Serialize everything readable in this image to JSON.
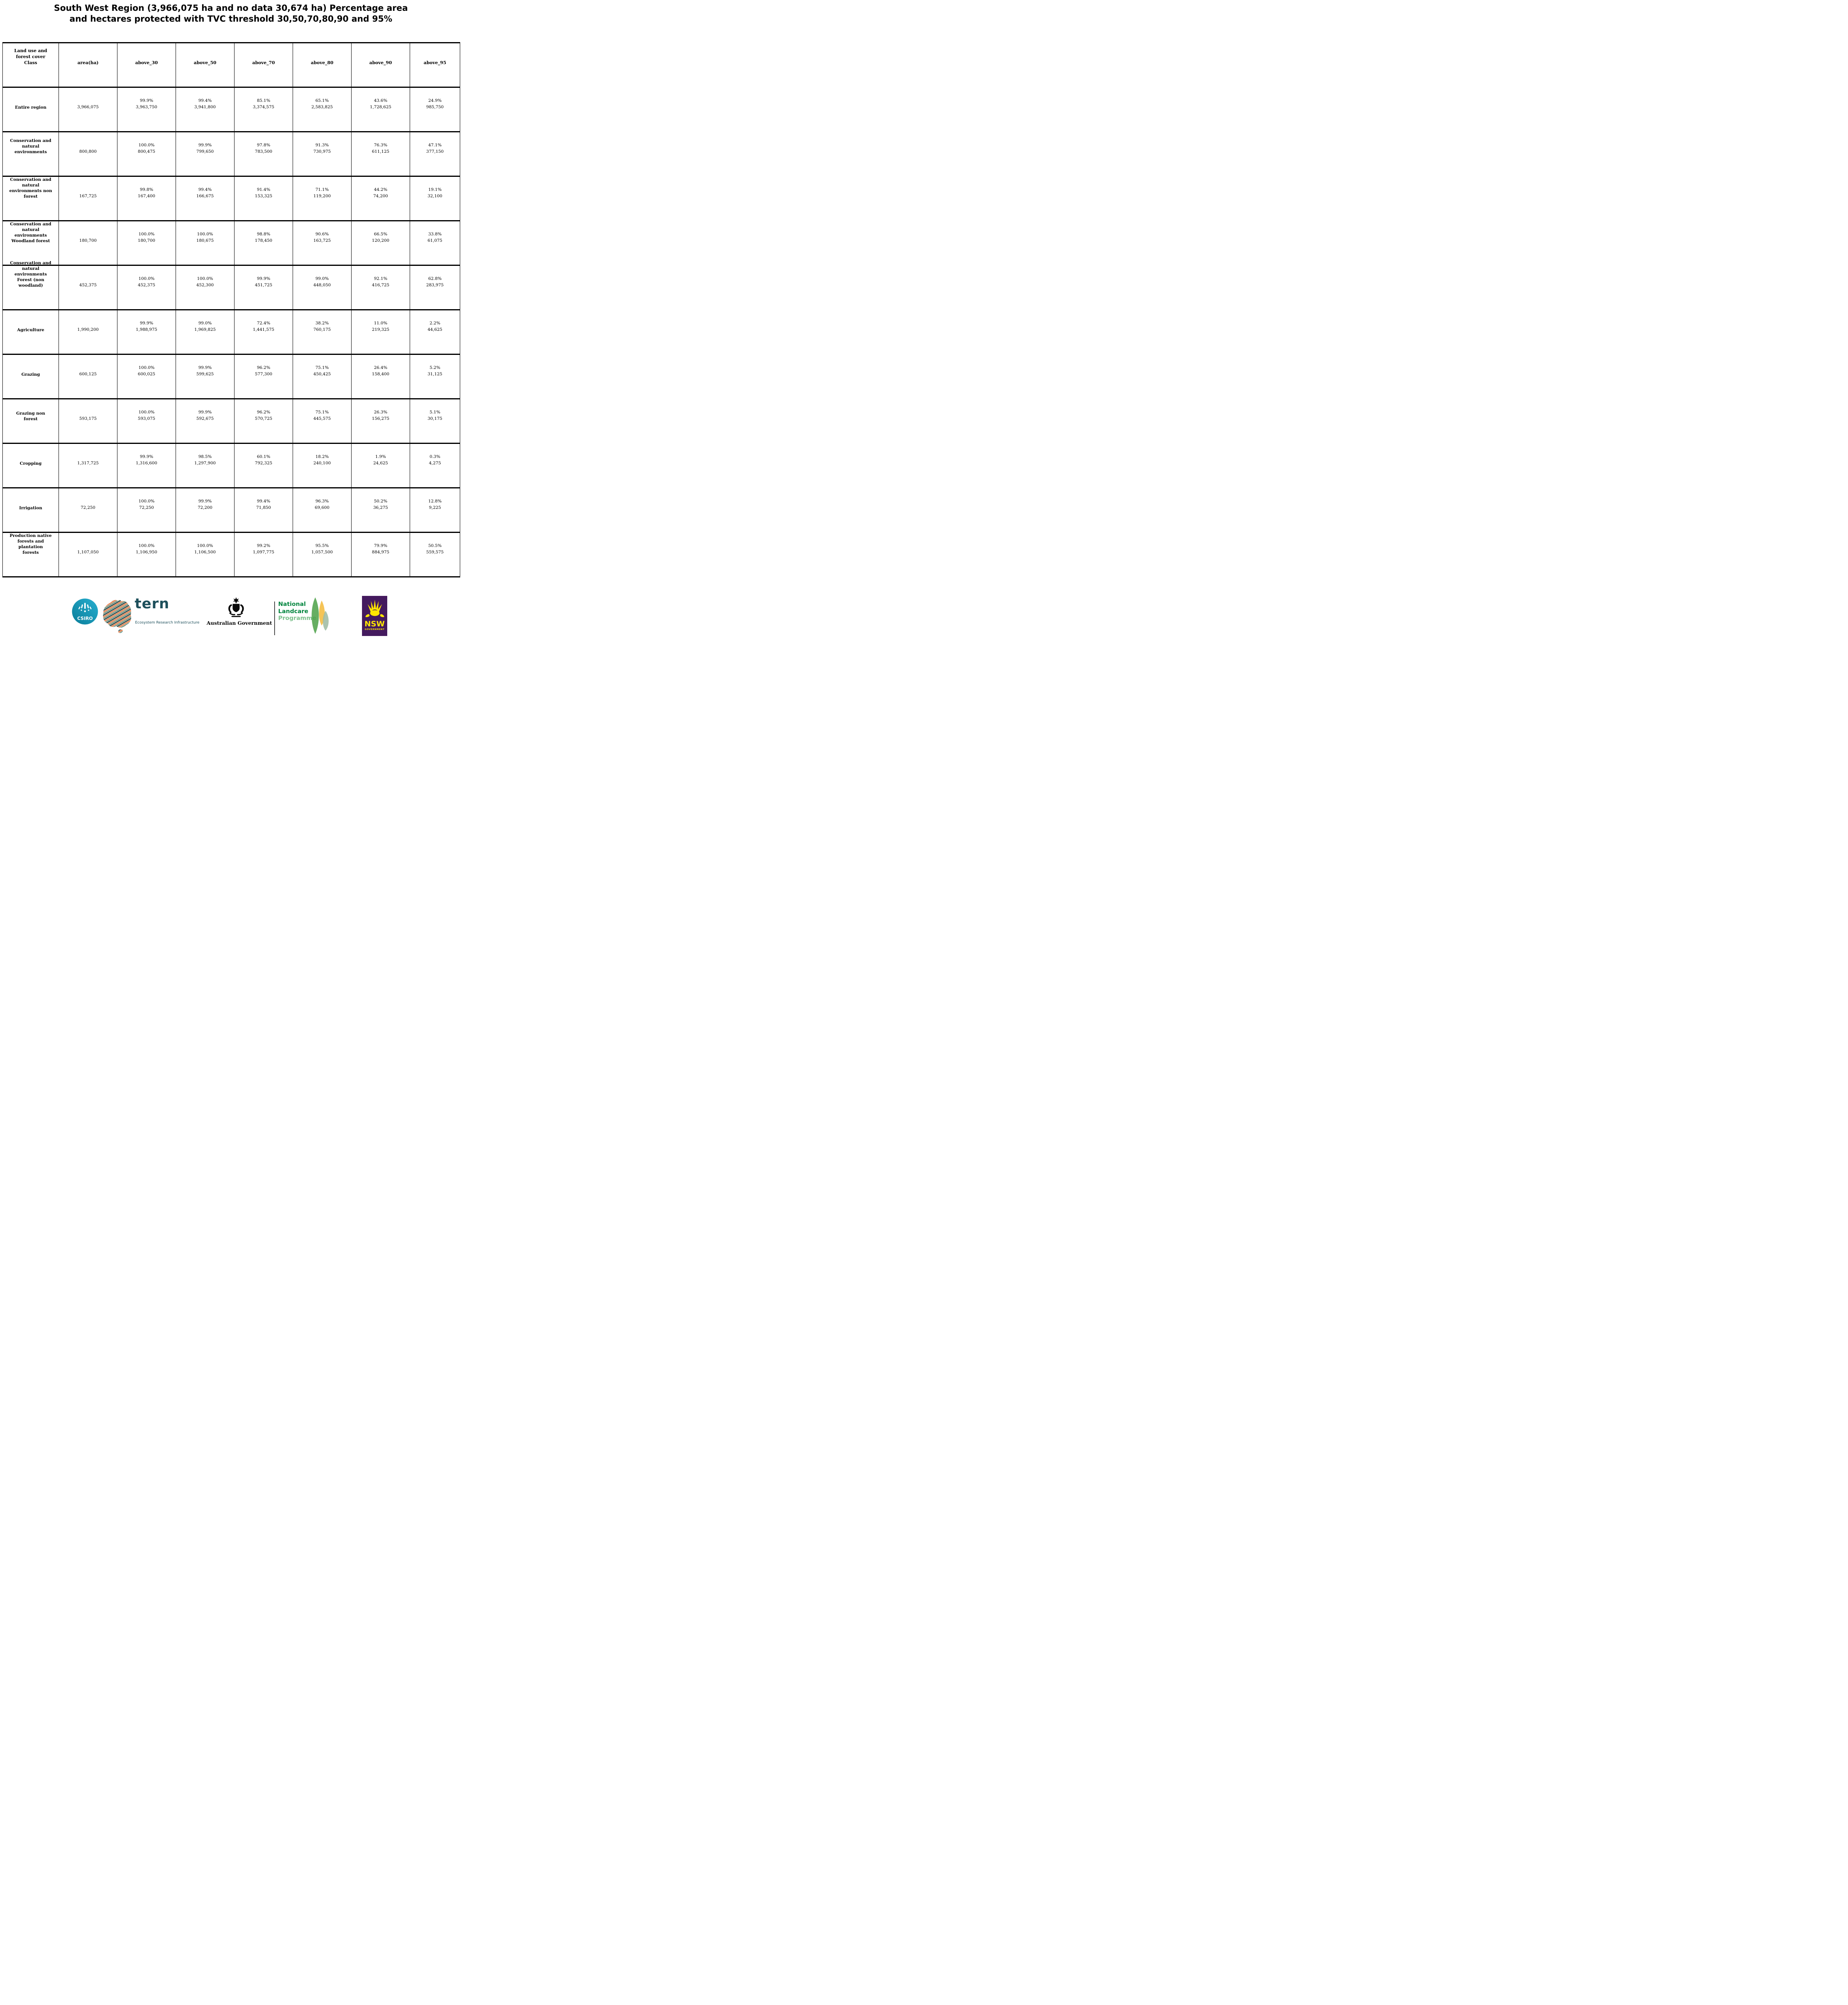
{
  "title": {
    "line1": "South West Region (3,966,075 ha and no data 30,674 ha) Percentage area",
    "line2": "and hectares protected with TVC threshold 30,50,70,80,90 and 95%"
  },
  "table": {
    "corner_header": "Land use and\nforest cover\nClass",
    "columns": [
      "area(ha)",
      "above_30",
      "above_50",
      "above_70",
      "above_80",
      "above_90",
      "above_95"
    ],
    "rows": [
      {
        "label": "Entire region",
        "area": "3,966,075",
        "cells": [
          {
            "pct": "99.9%",
            "ha": "3,963,750"
          },
          {
            "pct": "99.4%",
            "ha": "3,941,800"
          },
          {
            "pct": "85.1%",
            "ha": "3,374,575"
          },
          {
            "pct": "65.1%",
            "ha": "2,583,825"
          },
          {
            "pct": "43.6%",
            "ha": "1,728,625"
          },
          {
            "pct": "24.9%",
            "ha": "985,750"
          }
        ]
      },
      {
        "label": "Conservation and\nnatural\nenvironments",
        "area": "800,800",
        "cells": [
          {
            "pct": "100.0%",
            "ha": "800,475"
          },
          {
            "pct": "99.9%",
            "ha": "799,650"
          },
          {
            "pct": "97.8%",
            "ha": "783,500"
          },
          {
            "pct": "91.3%",
            "ha": "730,975"
          },
          {
            "pct": "76.3%",
            "ha": "611,125"
          },
          {
            "pct": "47.1%",
            "ha": "377,150"
          }
        ]
      },
      {
        "label": "Conservation and\nnatural\nenvironments non\nforest",
        "area": "167,725",
        "cells": [
          {
            "pct": "99.8%",
            "ha": "167,400"
          },
          {
            "pct": "99.4%",
            "ha": "166,675"
          },
          {
            "pct": "91.4%",
            "ha": "153,325"
          },
          {
            "pct": "71.1%",
            "ha": "119,200"
          },
          {
            "pct": "44.2%",
            "ha": "74,200"
          },
          {
            "pct": "19.1%",
            "ha": "32,100"
          }
        ]
      },
      {
        "label": "Conservation and\nnatural\nenvironments\nWoodland forest",
        "area": "180,700",
        "cells": [
          {
            "pct": "100.0%",
            "ha": "180,700"
          },
          {
            "pct": "100.0%",
            "ha": "180,675"
          },
          {
            "pct": "98.8%",
            "ha": "178,450"
          },
          {
            "pct": "90.6%",
            "ha": "163,725"
          },
          {
            "pct": "66.5%",
            "ha": "120,200"
          },
          {
            "pct": "33.8%",
            "ha": "61,075"
          }
        ]
      },
      {
        "label": "Conservation and\nnatural\nenvironments\nForest (non\nwoodland)",
        "area": "452,375",
        "cells": [
          {
            "pct": "100.0%",
            "ha": "452,375"
          },
          {
            "pct": "100.0%",
            "ha": "452,300"
          },
          {
            "pct": "99.9%",
            "ha": "451,725"
          },
          {
            "pct": "99.0%",
            "ha": "448,050"
          },
          {
            "pct": "92.1%",
            "ha": "416,725"
          },
          {
            "pct": "62.8%",
            "ha": "283,975"
          }
        ]
      },
      {
        "label": "Agriculture",
        "area": "1,990,200",
        "cells": [
          {
            "pct": "99.9%",
            "ha": "1,988,975"
          },
          {
            "pct": "99.0%",
            "ha": "1,969,825"
          },
          {
            "pct": "72.4%",
            "ha": "1,441,575"
          },
          {
            "pct": "38.2%",
            "ha": "760,175"
          },
          {
            "pct": "11.0%",
            "ha": "219,325"
          },
          {
            "pct": "2.2%",
            "ha": "44,625"
          }
        ]
      },
      {
        "label": "Grazing",
        "area": "600,125",
        "cells": [
          {
            "pct": "100.0%",
            "ha": "600,025"
          },
          {
            "pct": "99.9%",
            "ha": "599,625"
          },
          {
            "pct": "96.2%",
            "ha": "577,300"
          },
          {
            "pct": "75.1%",
            "ha": "450,425"
          },
          {
            "pct": "26.4%",
            "ha": "158,400"
          },
          {
            "pct": "5.2%",
            "ha": "31,125"
          }
        ]
      },
      {
        "label": "Grazing non\nforest",
        "area": "593,175",
        "cells": [
          {
            "pct": "100.0%",
            "ha": "593,075"
          },
          {
            "pct": "99.9%",
            "ha": "592,675"
          },
          {
            "pct": "96.2%",
            "ha": "570,725"
          },
          {
            "pct": "75.1%",
            "ha": "445,575"
          },
          {
            "pct": "26.3%",
            "ha": "156,275"
          },
          {
            "pct": "5.1%",
            "ha": "30,175"
          }
        ]
      },
      {
        "label": "Cropping",
        "area": "1,317,725",
        "cells": [
          {
            "pct": "99.9%",
            "ha": "1,316,600"
          },
          {
            "pct": "98.5%",
            "ha": "1,297,900"
          },
          {
            "pct": "60.1%",
            "ha": "792,325"
          },
          {
            "pct": "18.2%",
            "ha": "240,100"
          },
          {
            "pct": "1.9%",
            "ha": "24,625"
          },
          {
            "pct": "0.3%",
            "ha": "4,275"
          }
        ]
      },
      {
        "label": "Irrigation",
        "area": "72,250",
        "cells": [
          {
            "pct": "100.0%",
            "ha": "72,250"
          },
          {
            "pct": "99.9%",
            "ha": "72,200"
          },
          {
            "pct": "99.4%",
            "ha": "71,850"
          },
          {
            "pct": "96.3%",
            "ha": "69,600"
          },
          {
            "pct": "50.2%",
            "ha": "36,275"
          },
          {
            "pct": "12.8%",
            "ha": "9,225"
          }
        ]
      },
      {
        "label": "Production native\nforests and\nplantation\nforests",
        "area": "1,107,050",
        "cells": [
          {
            "pct": "100.0%",
            "ha": "1,106,950"
          },
          {
            "pct": "100.0%",
            "ha": "1,106,500"
          },
          {
            "pct": "99.2%",
            "ha": "1,097,775"
          },
          {
            "pct": "95.5%",
            "ha": "1,057,500"
          },
          {
            "pct": "79.9%",
            "ha": "884,975"
          },
          {
            "pct": "50.5%",
            "ha": "559,575"
          }
        ]
      }
    ]
  },
  "footer": {
    "csiro": {
      "wordmark": "CSIRO"
    },
    "tern": {
      "wordmark": "tern",
      "subtitle": "Ecosystem Research Infrastructure"
    },
    "australian_government": {
      "label": "Australian Government"
    },
    "landcare": {
      "line1": "National",
      "line2": "Landcare",
      "line3": "Programme"
    },
    "nsw": {
      "wordmark": "NSW",
      "sub_label": "GOVERNMENT"
    }
  },
  "colors": {
    "csiro_teal_dark": "#0A7D99",
    "csiro_teal_light": "#27AFD0",
    "tern_dark_teal": "#1D4F5B",
    "tern_orange": "#E57A50",
    "tern_peach": "#F5CBA4",
    "tern_sea_teal": "#579390",
    "ausgov_black": "#0A0A0A",
    "landcare_green": "#00843D",
    "landcare_light_green": "#7CC08C",
    "landcare_leaf_green": "#4BA046",
    "landcare_leaf_yellow": "#F4BE45",
    "landcare_leaf_grey": "#9FBCA4",
    "nsw_purple": "#441A5E",
    "nsw_yellow": "#FFE600"
  }
}
